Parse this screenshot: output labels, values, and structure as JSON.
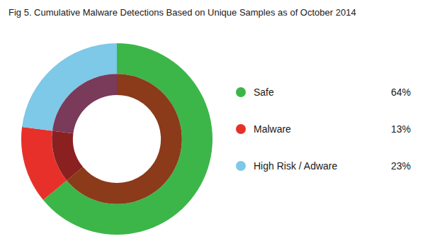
{
  "chart_data": {
    "type": "pie",
    "title": "Fig 5. Cumulative Malware Detections Based on Unique Samples as of October 2014",
    "categories": [
      "Safe",
      "Malware",
      "High Risk / Adware"
    ],
    "series": [
      {
        "values": [
          64,
          13,
          23
        ],
        "colors": [
          "#3cb648",
          "#e8302a",
          "#7ec8e8"
        ],
        "value_labels": [
          "64%",
          "13%",
          "23%"
        ]
      },
      {
        "values": [
          64,
          13,
          23
        ],
        "colors": [
          "#8b3a1a",
          "#8b2020",
          "#7a3a5a"
        ]
      }
    ],
    "legend": "right"
  }
}
